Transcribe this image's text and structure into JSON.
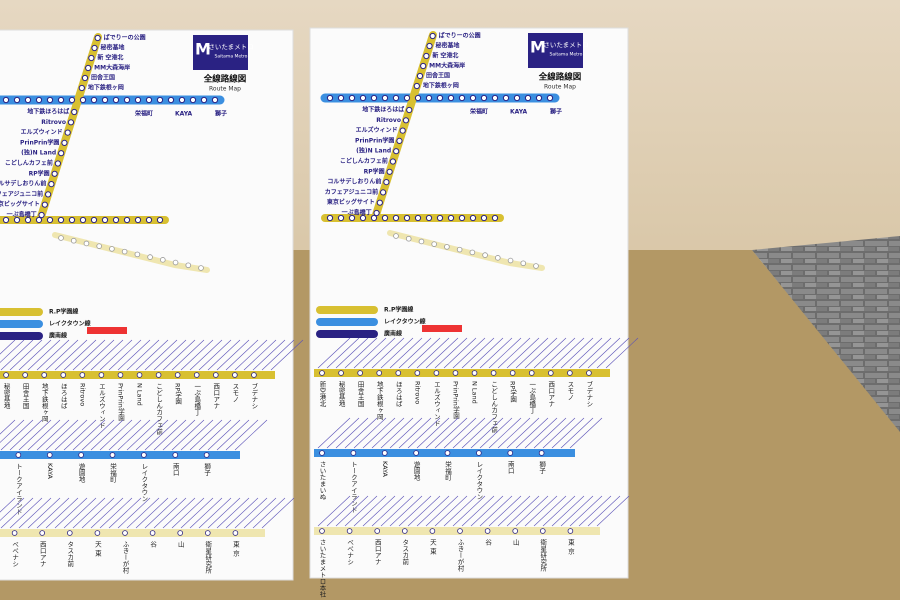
{
  "poster": {
    "logo_ja": "さいたまメトロ",
    "logo_en": "Saitama Metro",
    "title": "全線路線図",
    "subtitle": "Route Map",
    "diagonal_stations": [
      "ぱでりーの公園",
      "秘密基地",
      "新 空港北",
      "MM大森海岸",
      "田舎王国",
      "地下鉄根ヶ岡",
      "地下鉄ほろはば",
      "Ritrovo",
      "エルズウィンド",
      "PrinPrin学園",
      "(独)N Land",
      "こどしんカフェ前",
      "RP学園",
      "コルサデしおりん前",
      "カフェアジュニコ前",
      "東京ビッグサイト",
      "一ぷ島橋丁"
    ],
    "blue_stations": [
      "栄福町",
      "KAYA",
      "獅子"
    ],
    "legend": [
      "R.P学園線",
      "レイクタウン線",
      "廣南線"
    ],
    "strips": [
      [
        "新空港北",
        "秘密基地",
        "田舎王国",
        "地下鉄根ヶ岡",
        "ほろはば",
        "Ritrovo",
        "エルズウィンド",
        "PrinPrin学園",
        "N Land",
        "こどしんカフェ前",
        "RP学園",
        "一ぷ島橋丁",
        "西口アナ",
        "スモノ",
        "ブデナシ"
      ],
      [
        "さいたまいぬ",
        "トークアイランド",
        "KAYA",
        "遊園地",
        "栄福町",
        "レイクタウン",
        "南口",
        "獅子"
      ],
      [
        "さいたまメトロ本社",
        "ぺぺナシ",
        "西口アナ",
        "タスカ前",
        "天 東",
        "ふきーが村",
        "谷",
        "山",
        "衛星研究所",
        "東 京"
      ]
    ]
  }
}
